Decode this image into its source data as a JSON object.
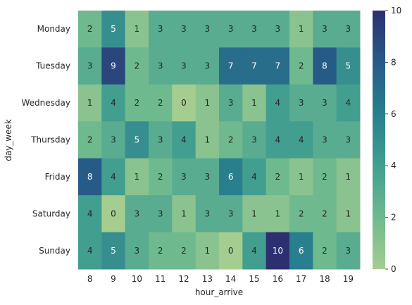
{
  "chart_data": {
    "type": "heatmap",
    "xlabel": "hour_arrive",
    "ylabel": "day_week",
    "x": [
      "8",
      "9",
      "10",
      "11",
      "12",
      "13",
      "14",
      "15",
      "16",
      "17",
      "18",
      "19"
    ],
    "y": [
      "Monday",
      "Tuesday",
      "Wednesday",
      "Thursday",
      "Friday",
      "Saturday",
      "Sunday"
    ],
    "values": [
      [
        2,
        5,
        1,
        3,
        3,
        3,
        3,
        3,
        3,
        1,
        3,
        3
      ],
      [
        3,
        9,
        2,
        3,
        3,
        3,
        7,
        7,
        7,
        2,
        8,
        5
      ],
      [
        1,
        4,
        2,
        2,
        0,
        1,
        3,
        1,
        4,
        3,
        3,
        4
      ],
      [
        2,
        3,
        5,
        3,
        4,
        1,
        2,
        3,
        4,
        4,
        3,
        3
      ],
      [
        8,
        4,
        1,
        2,
        3,
        3,
        6,
        4,
        2,
        1,
        2,
        1
      ],
      [
        4,
        0,
        3,
        3,
        1,
        3,
        3,
        1,
        1,
        2,
        2,
        1
      ],
      [
        4,
        5,
        3,
        2,
        2,
        1,
        0,
        4,
        10,
        6,
        2,
        3
      ]
    ],
    "colorbar": {
      "min": 0,
      "max": 10,
      "ticks": [
        0,
        2,
        4,
        6,
        8,
        10
      ],
      "colormap": "crest"
    }
  }
}
